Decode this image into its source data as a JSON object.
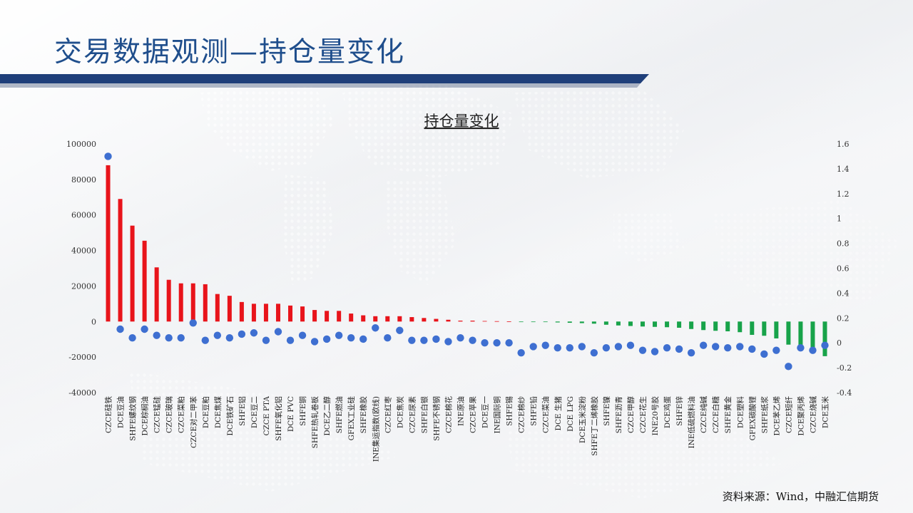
{
  "slide": {
    "title": "交易数据观测—持仓量变化",
    "source_note": "资料来源：Wind，中融汇信期货"
  },
  "colors": {
    "title": "#1f4e8c",
    "title_bar": "#1f3f7a",
    "positive_bar": "#e8141b",
    "negative_bar": "#18a34a",
    "dot": "#3e6fd1"
  },
  "chart_data": {
    "type": "bar",
    "title": "持仓量变化",
    "legend": "none",
    "grid": false,
    "y_left": {
      "lim": [
        -40000,
        100000
      ],
      "ticks": [
        "100000",
        "80000",
        "60000",
        "40000",
        "20000",
        "0",
        "-20000",
        "-40000"
      ]
    },
    "y_right": {
      "lim": [
        -0.4,
        1.6
      ],
      "ticks": [
        "1.6",
        "1.4",
        "1.2",
        "1",
        "0.8",
        "0.6",
        "0.4",
        "0.2",
        "0",
        "-0.2",
        "-0.4"
      ]
    },
    "categories": [
      "CZCE硅铁",
      "DCE豆油",
      "SHFE螺纹钢",
      "DCE棕榈油",
      "CZCE锰硅",
      "CZCE玻璃",
      "CZCE菜粕",
      "CZCE对二甲苯",
      "DCE豆粕",
      "DCE焦煤",
      "DCE铁矿石",
      "SHFE铝",
      "DCE豆二",
      "CZCE PTA",
      "SHFE氧化铝",
      "DCE PVC",
      "SHFE铜",
      "SHFE热轧卷板",
      "DCE乙二醇",
      "SHFE燃油",
      "GFEX工业硅",
      "SHFE橡胶",
      "INE集运指数(欧线)",
      "CZCE红枣",
      "DCE焦炭",
      "CZCE尿素",
      "SHFE白银",
      "SHFE不锈钢",
      "CZCE棉花",
      "INE原油",
      "CZCE苹果",
      "DCE豆一",
      "INE国际铜",
      "SHFE锡",
      "CZCE棉纱",
      "SHFE铅",
      "CZCE菜油",
      "DCE生猪",
      "DCE LPG",
      "DCE玉米淀粉",
      "SHFE丁二烯橡胶",
      "SHFE镍",
      "SHFE沥青",
      "CZCE甲醇",
      "CZCE花生",
      "INE20号胶",
      "DCE鸡蛋",
      "SHFE锌",
      "INE低硫燃料油",
      "CZCE纯碱",
      "CZCE白糖",
      "SHFE黄金",
      "DCE塑料",
      "GFEX碳酸锂",
      "SHFE纸浆",
      "DCE苯乙烯",
      "CZCE短纤",
      "DCE聚丙烯",
      "CZCE烧碱",
      "DCE玉米"
    ],
    "category_labels": [
      "CZCE硅铁",
      "DCE豆油",
      "SHFE螺纹钢",
      "DCE棕榈油",
      "CZCE锰硅",
      "CZCE玻璃",
      "CZCE菜粕",
      "CZCE对二甲苯",
      "DCE豆粕",
      "DCE焦煤",
      "DCE铁矿石",
      "SHFE铝",
      "DCE豆二",
      "CZCE PTA",
      "SHFE氧化铝",
      "DCE PVC",
      "SHFE铜",
      "SHFE热轧卷板",
      "DCE乙二醇",
      "SHFE燃油",
      "GFEX工业硅",
      "SHFE橡胶",
      "INE集运指数(欧线)",
      "CZCE红枣",
      "DCE焦炭",
      "CZCE尿素",
      "SHFE白银",
      "SHFE不锈钢",
      "CZCE棉花",
      "INE原油",
      "CZCE苹果",
      "DCE豆一",
      "INE国际铜",
      "SHFE锡",
      "CZCE棉纱",
      "SHFE铅",
      "CZCE菜油",
      "DCE 生猪",
      "DCE LPG",
      "DCE玉米淀粉",
      "SHFE丁二烯橡胶",
      "SHFE镍",
      "SHFE沥青",
      "CZCE甲醇",
      "CZCE花生",
      "INE20号胶",
      "DCE鸡蛋",
      "SHFE锌",
      "INE低硫燃料油",
      "CZCE纯碱",
      "CZCE白糖",
      "SHFE黄金",
      "DCE塑料",
      "GFEX碳酸锂",
      "SHFE纸浆",
      "DCE苯乙烯",
      "CZCE短纤",
      "DCE聚丙烯",
      "CZCE烧碱",
      "DCE玉米"
    ],
    "bar_values": [
      88000,
      69000,
      54000,
      45500,
      30500,
      23500,
      21500,
      21500,
      21000,
      15500,
      14500,
      11000,
      10000,
      10000,
      10000,
      9000,
      8500,
      6500,
      6000,
      6000,
      4500,
      3500,
      3000,
      3000,
      3000,
      2500,
      2000,
      1500,
      1000,
      500,
      500,
      300,
      200,
      100,
      -100,
      -200,
      -300,
      -500,
      -700,
      -900,
      -1200,
      -1800,
      -2200,
      -2500,
      -2800,
      -3000,
      -3200,
      -3500,
      -4200,
      -4800,
      -5200,
      -5500,
      -6000,
      -7500,
      -8000,
      -9500,
      -13000,
      -14000,
      -16500,
      -19500
    ],
    "dot_values": [
      1.5,
      0.11,
      0.04,
      0.11,
      0.06,
      0.04,
      0.04,
      0.16,
      0.02,
      0.06,
      0.04,
      0.07,
      0.08,
      0.02,
      0.09,
      0.02,
      0.06,
      0.01,
      0.03,
      0.06,
      0.04,
      0.03,
      0.12,
      0.04,
      0.1,
      0.02,
      0.02,
      0.03,
      0.01,
      0.04,
      0.02,
      0,
      0,
      0,
      -0.08,
      -0.03,
      -0.02,
      -0.04,
      -0.04,
      -0.03,
      -0.08,
      -0.04,
      -0.03,
      -0.02,
      -0.06,
      -0.07,
      -0.04,
      -0.05,
      -0.08,
      -0.02,
      -0.03,
      -0.04,
      -0.03,
      -0.05,
      -0.09,
      -0.06,
      -0.19,
      -0.04,
      -0.06,
      -0.02
    ]
  }
}
